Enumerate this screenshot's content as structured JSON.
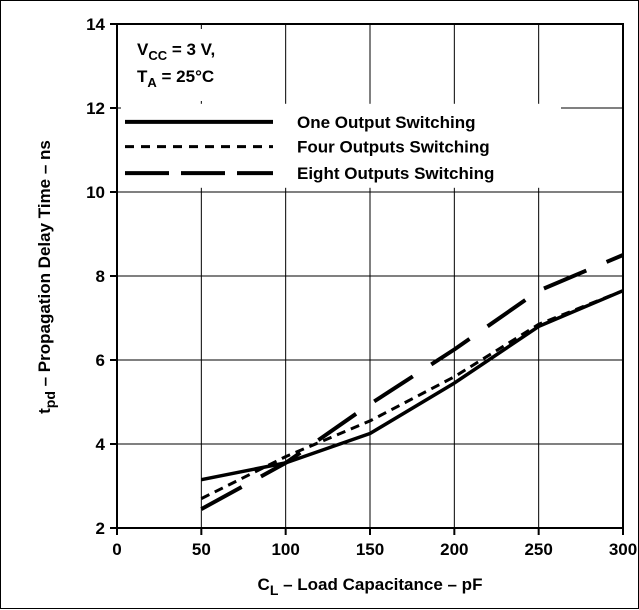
{
  "chart_data": {
    "type": "line",
    "title": "",
    "xlabel": {
      "main": "C",
      "sub": "L",
      "rest": " – Load Capacitance – pF"
    },
    "ylabel": {
      "main": "t",
      "sub": "pd",
      "rest": " – Propagation Delay Time – ns"
    },
    "xlim": [
      0,
      300
    ],
    "ylim": [
      2,
      14
    ],
    "xticks": [
      0,
      50,
      100,
      150,
      200,
      250,
      300
    ],
    "yticks": [
      2,
      4,
      6,
      8,
      10,
      12,
      14
    ],
    "grid": true,
    "conditions": [
      {
        "main": "V",
        "sub": "CC",
        "rest": " = 3 V,"
      },
      {
        "main": "T",
        "sub": "A",
        "rest": " = 25°C"
      }
    ],
    "legend_position": "top",
    "series": [
      {
        "name": "One Output Switching",
        "style": "solid",
        "x": [
          50,
          100,
          150,
          200,
          250,
          300
        ],
        "y": [
          3.15,
          3.55,
          4.25,
          5.45,
          6.8,
          7.65
        ]
      },
      {
        "name": "Four Outputs Switching",
        "style": "dashed",
        "x": [
          50,
          100,
          150,
          200,
          250,
          300
        ],
        "y": [
          2.7,
          3.7,
          4.55,
          5.6,
          6.85,
          7.65
        ]
      },
      {
        "name": "Eight Outputs Switching",
        "style": "long-dash",
        "x": [
          50,
          100,
          150,
          200,
          250,
          300
        ],
        "y": [
          2.45,
          3.55,
          4.95,
          6.25,
          7.65,
          8.5
        ]
      }
    ],
    "colors": {
      "line": "#000000",
      "grid": "#000000",
      "background": "#ffffff"
    }
  }
}
